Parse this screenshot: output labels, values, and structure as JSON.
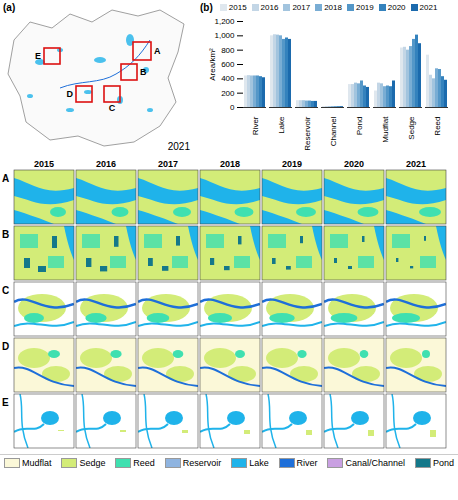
{
  "chart_data": {
    "type": "bar",
    "title": "(b)",
    "y_label": "Area/km²",
    "categories": [
      "River",
      "Lake",
      "Reservoir",
      "Channel",
      "Pond",
      "Mudflat",
      "Sedge",
      "Reed"
    ],
    "series": [
      {
        "name": "2015",
        "color": "#dfe7ee",
        "values": [
          440,
          1000,
          95,
          12,
          320,
          230,
          830,
          730
        ]
      },
      {
        "name": "2016",
        "color": "#c3d6e6",
        "values": [
          445,
          1015,
          95,
          12,
          320,
          340,
          840,
          450
        ]
      },
      {
        "name": "2017",
        "color": "#a2c4de",
        "values": [
          440,
          1010,
          95,
          12,
          340,
          330,
          800,
          400
        ]
      },
      {
        "name": "2018",
        "color": "#79add4",
        "values": [
          440,
          1000,
          90,
          12,
          330,
          290,
          850,
          540
        ]
      },
      {
        "name": "2019",
        "color": "#5497c8",
        "values": [
          440,
          950,
          90,
          12,
          370,
          300,
          950,
          530
        ]
      },
      {
        "name": "2020",
        "color": "#3482bd",
        "values": [
          430,
          970,
          85,
          12,
          300,
          290,
          1010,
          430
        ]
      },
      {
        "name": "2021",
        "color": "#1b6aad",
        "values": [
          415,
          950,
          85,
          12,
          280,
          370,
          890,
          380
        ]
      }
    ],
    "ylim": [
      0,
      1200
    ],
    "yticks": [
      0,
      200,
      400,
      600,
      800,
      {
        "value": 1000,
        "label": "1,000"
      },
      {
        "value": 1200,
        "label": "1,200"
      }
    ],
    "grid": false,
    "legend": "top"
  },
  "panel_a": {
    "label": "(a)",
    "year": "2021",
    "boxes": [
      "A",
      "B",
      "C",
      "D",
      "E"
    ]
  },
  "map_grid": {
    "columns": [
      "2015",
      "2016",
      "2017",
      "2018",
      "2019",
      "2020",
      "2021"
    ],
    "rows": [
      "A",
      "B",
      "C",
      "D",
      "E"
    ]
  },
  "map_legend": [
    {
      "name": "Mudflat",
      "color": "#fbf8d8"
    },
    {
      "name": "Sedge",
      "color": "#d3ec78"
    },
    {
      "name": "Reed",
      "color": "#3fe0b0"
    },
    {
      "name": "Reservoir",
      "color": "#8fb4e0"
    },
    {
      "name": "Lake",
      "color": "#1fb3ea"
    },
    {
      "name": "River",
      "color": "#1e6fd9"
    },
    {
      "name": "Canal/Channel",
      "color": "#c9a0e2"
    },
    {
      "name": "Pond",
      "color": "#14788a"
    }
  ]
}
